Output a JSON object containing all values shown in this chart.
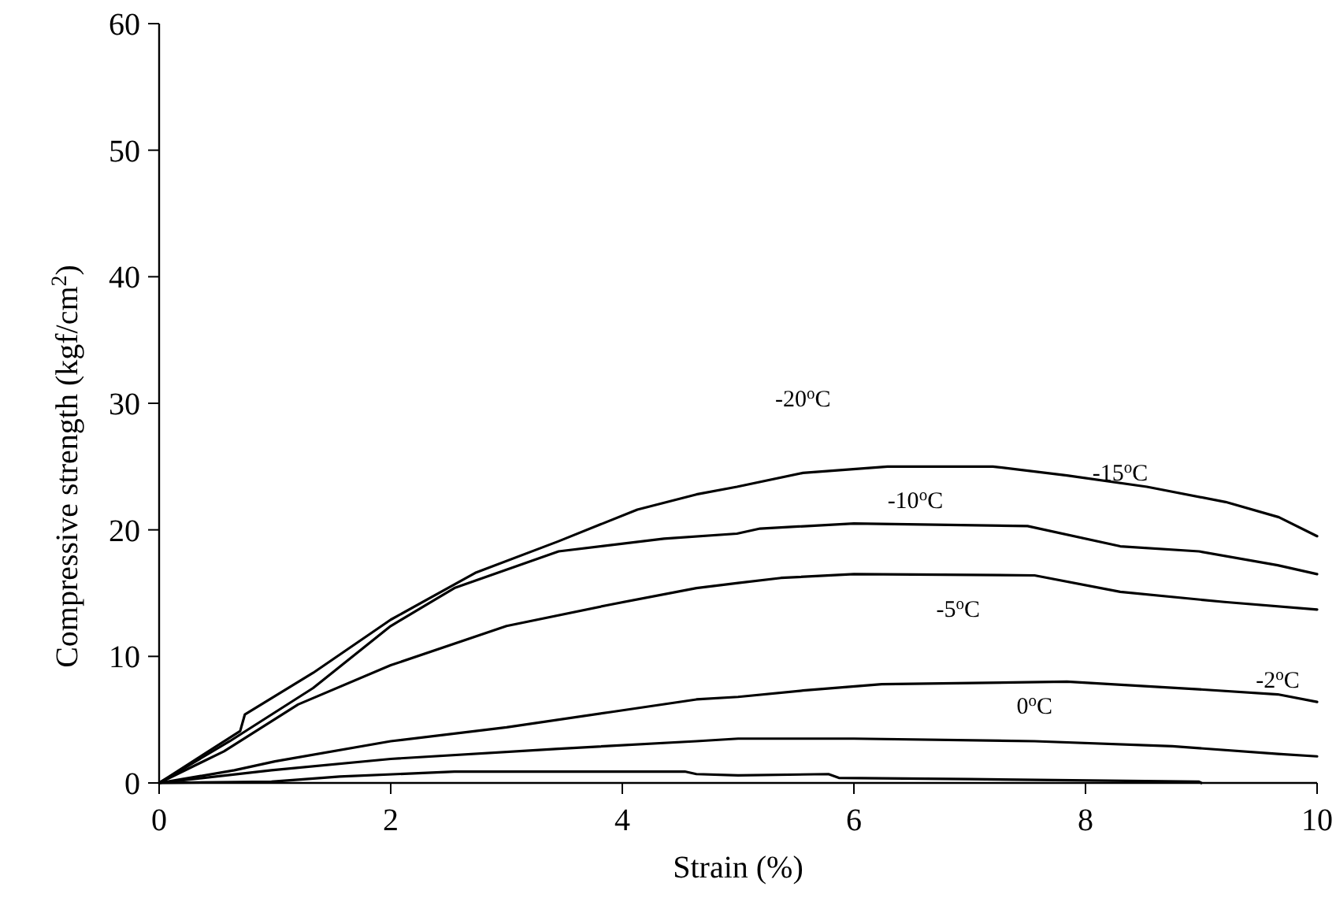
{
  "chart_data": {
    "type": "line",
    "xlabel": "Strain (%)",
    "ylabel": "Compressive strength (kgf/cm$^{2}$)",
    "xlim": [
      0,
      10
    ],
    "ylim": [
      0,
      60
    ],
    "xticks": [
      0,
      2,
      4,
      6,
      8,
      10
    ],
    "yticks": [
      0,
      10,
      20,
      30,
      40,
      50,
      60
    ],
    "grid": false,
    "marker": "none",
    "line_style": "solid",
    "series": [
      {
        "color": "#000000",
        "x": [
          0,
          0.7,
          0.74,
          1.33,
          2.0,
          2.73,
          3.45,
          4.13,
          4.64,
          4.99,
          5.56,
          6.29,
          7.2,
          7.84,
          8.53,
          9.21,
          9.67,
          10
        ],
        "values": [
          0,
          4.1,
          5.4,
          8.7,
          12.9,
          16.6,
          19.1,
          21.6,
          22.8,
          23.4,
          24.5,
          25.0,
          25.0,
          24.3,
          23.4,
          22.2,
          21.0,
          19.5
        ]
      },
      {
        "color": "#000000",
        "x": [
          0,
          0.61,
          1.33,
          2.0,
          2.55,
          3.45,
          4.36,
          4.99,
          5.19,
          6.0,
          7.5,
          8.3,
          8.98,
          9.66,
          10
        ],
        "values": [
          0,
          3.3,
          7.5,
          12.4,
          15.4,
          18.3,
          19.3,
          19.7,
          20.1,
          20.5,
          20.3,
          18.7,
          18.3,
          17.2,
          16.5
        ]
      },
      {
        "color": "#000000",
        "x": [
          0,
          0.56,
          1.2,
          2.0,
          3.0,
          3.9,
          4.64,
          5.0,
          5.37,
          6.0,
          7.56,
          8.3,
          9.2,
          10
        ],
        "values": [
          0,
          2.5,
          6.2,
          9.3,
          12.4,
          14.1,
          15.4,
          15.8,
          16.2,
          16.5,
          16.4,
          15.1,
          14.3,
          13.7
        ]
      },
      {
        "color": "#000000",
        "x": [
          0,
          0.65,
          1.0,
          2.0,
          3.0,
          3.9,
          4.64,
          5.0,
          5.56,
          6.24,
          7.84,
          8.98,
          9.66,
          10
        ],
        "values": [
          0,
          1.0,
          1.7,
          3.3,
          4.4,
          5.6,
          6.6,
          6.8,
          7.3,
          7.8,
          8.0,
          7.4,
          7.0,
          6.4
        ]
      },
      {
        "color": "#000000",
        "x": [
          0,
          0.97,
          2.0,
          3.45,
          4.64,
          5.0,
          6.0,
          7.56,
          8.75,
          9.66,
          10
        ],
        "values": [
          0,
          1.0,
          1.9,
          2.7,
          3.3,
          3.5,
          3.5,
          3.3,
          2.9,
          2.3,
          2.1
        ]
      },
      {
        "color": "#000000",
        "x": [
          0,
          0.97,
          1.56,
          2.55,
          4.54,
          4.64,
          5.0,
          5.78,
          5.87,
          7.0,
          8.98,
          9.0
        ],
        "values": [
          0,
          0.1,
          0.5,
          0.9,
          0.9,
          0.7,
          0.6,
          0.7,
          0.4,
          0.3,
          0.1,
          0
        ]
      }
    ],
    "annotations": [
      {
        "text": "-20$^{o}$C",
        "x": 5.56,
        "y": 24.5
      },
      {
        "text": "-15$^{o}$C",
        "x": 8.3,
        "y": 18.7
      },
      {
        "text": "-10$^{o}$C",
        "x": 6.53,
        "y": 16.5
      },
      {
        "text": "-5$^{o}$C",
        "x": 6.9,
        "y": 7.9
      },
      {
        "text": "-2$^{o}$C",
        "x": 9.66,
        "y": 2.3
      },
      {
        "text": "0$^{o}$C",
        "x": 7.56,
        "y": 0.25
      }
    ]
  }
}
